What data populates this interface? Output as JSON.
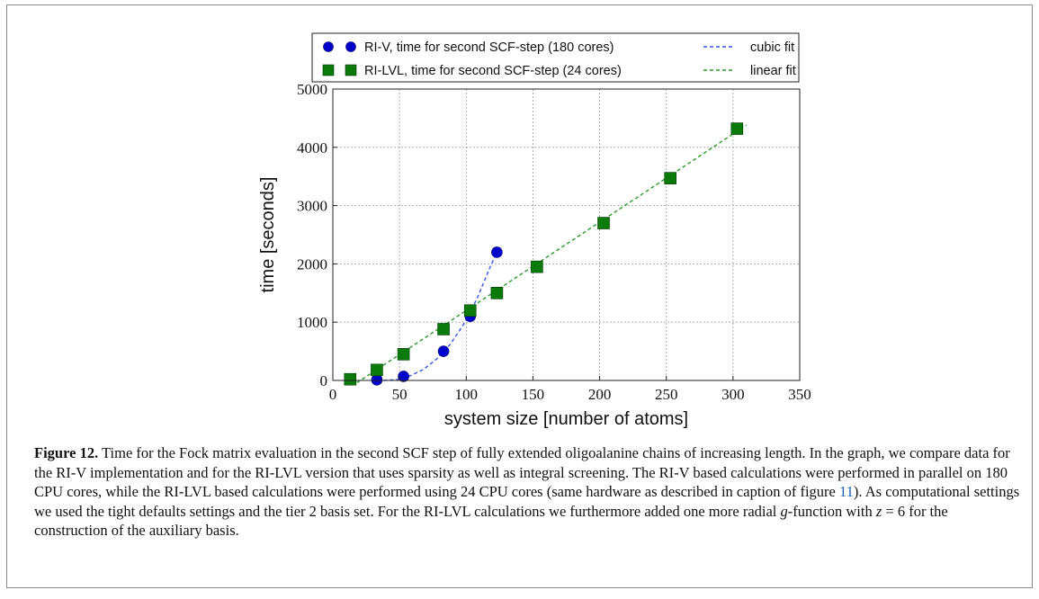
{
  "chart_data": {
    "type": "scatter",
    "xlabel": "system size [number of atoms]",
    "ylabel": "time [seconds]",
    "xlim": [
      0,
      350
    ],
    "ylim": [
      0,
      5000
    ],
    "xticks": [
      0,
      50,
      100,
      150,
      200,
      250,
      300,
      350
    ],
    "yticks": [
      0,
      1000,
      2000,
      3000,
      4000,
      5000
    ],
    "grid": true,
    "legend_position": "top",
    "series": [
      {
        "name": "RI-V, time for second SCF-step (180 cores)",
        "marker": "circle",
        "color": "#0000cc",
        "x": [
          33,
          53,
          83,
          103,
          123
        ],
        "y": [
          10,
          70,
          500,
          1100,
          2200
        ]
      },
      {
        "name": "RI-LVL, time for second SCF-step (24 cores)",
        "marker": "square",
        "color": "#0a7a0a",
        "x": [
          13,
          33,
          53,
          83,
          103,
          123,
          153,
          203,
          253,
          303
        ],
        "y": [
          20,
          180,
          450,
          880,
          1200,
          1500,
          1950,
          2700,
          3470,
          4320
        ]
      }
    ],
    "fits": [
      {
        "name": "cubic fit",
        "color": "#3355ee",
        "x": [
          38,
          48,
          58,
          68,
          78,
          88,
          98,
          108,
          118,
          123
        ],
        "y": [
          0,
          15,
          80,
          190,
          370,
          620,
          960,
          1400,
          1950,
          2200
        ]
      },
      {
        "name": "linear fit",
        "color": "#2a9a2a",
        "x": [
          18,
          310
        ],
        "y": [
          -40,
          4380
        ]
      }
    ]
  },
  "caption": {
    "label": "Figure 12.",
    "text_before_ref": " Time for the Fock matrix evaluation in the second SCF step of fully extended oligoalanine chains of increasing length. In the graph, we compare data for the RI-V implementation and for the RI-LVL version that uses sparsity as well as integral screening. The RI-V based calculations were performed in parallel on 180 CPU cores, while the RI-LVL based calculations were performed using 24 CPU cores (same hardware as described in caption of figure ",
    "ref": "11",
    "text_after_ref": "). As computational settings we used the tight defaults settings and the tier 2 basis set. For the RI-LVL calculations we furthermore added one more radial ",
    "g_symbol": "g",
    "text_g_function": "-function with ",
    "z_symbol": "z",
    "z_equals": " =  6 for the construction of the auxiliary basis."
  }
}
